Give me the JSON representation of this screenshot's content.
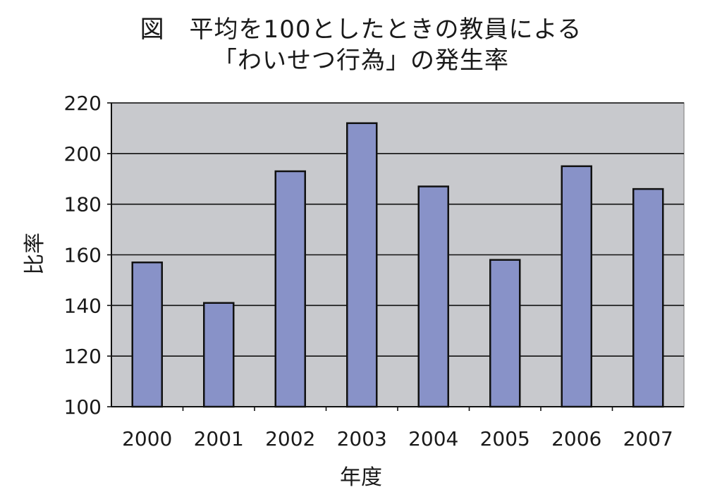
{
  "chart_data": {
    "type": "bar",
    "title_line1": "図　平均を100としたときの教員による",
    "title_line2": "「わいせつ行為」の発生率",
    "xlabel": "年度",
    "ylabel": "比率",
    "categories": [
      "2000",
      "2001",
      "2002",
      "2003",
      "2004",
      "2005",
      "2006",
      "2007"
    ],
    "values": [
      157,
      141,
      193,
      212,
      187,
      158,
      195,
      186
    ],
    "ylim": [
      100,
      220
    ],
    "yticks": [
      100,
      120,
      140,
      160,
      180,
      200,
      220
    ],
    "grid": true,
    "legend": "none",
    "colors": {
      "bar": "#8892c8",
      "bar_edge": "#111111",
      "plot_bg": "#c8c9cd",
      "grid": "#111111"
    }
  }
}
